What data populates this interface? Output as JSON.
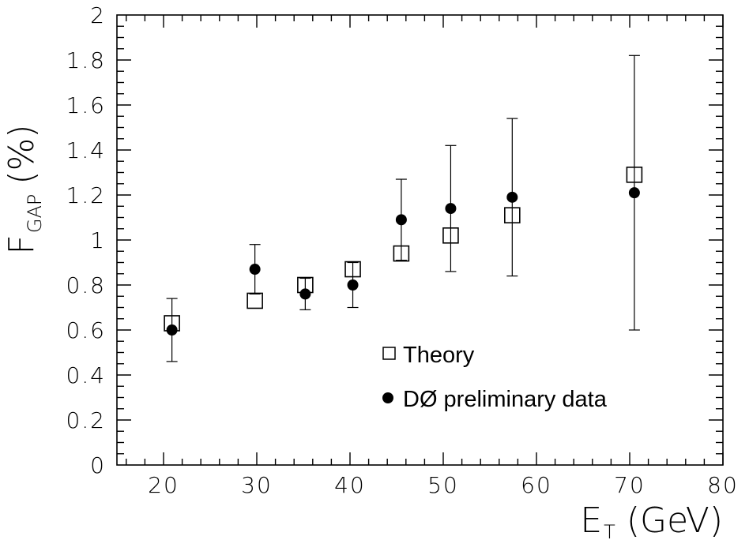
{
  "chart_data": {
    "type": "scatter",
    "xlabel": {
      "main": "E",
      "sub": "T",
      "unit": "(GeV)"
    },
    "ylabel": {
      "main": "F",
      "sub": "GAP",
      "unit": "(%)"
    },
    "xlim": [
      15,
      80
    ],
    "ylim": [
      0,
      2
    ],
    "x_ticks": [
      20,
      30,
      40,
      50,
      60,
      70,
      80
    ],
    "y_ticks": [
      0,
      0.2,
      0.4,
      0.6,
      0.8,
      1,
      1.2,
      1.4,
      1.6,
      1.8,
      2
    ],
    "y_tick_labels": [
      "0",
      "0.2",
      "0.4",
      "0.6",
      "0.8",
      "1",
      "1.2",
      "1.4",
      "1.6",
      "1.8",
      "2"
    ],
    "x_tick_labels": [
      "20",
      "30",
      "40",
      "50",
      "60",
      "70",
      "80"
    ],
    "grid": false,
    "legend_position": "center-right",
    "series": [
      {
        "name": "Theory",
        "marker": "open-square",
        "points": [
          {
            "x": 20.9,
            "y": 0.63
          },
          {
            "x": 29.8,
            "y": 0.73
          },
          {
            "x": 35.2,
            "y": 0.8
          },
          {
            "x": 40.3,
            "y": 0.87
          },
          {
            "x": 45.5,
            "y": 0.94
          },
          {
            "x": 50.8,
            "y": 1.02
          },
          {
            "x": 57.4,
            "y": 1.11
          },
          {
            "x": 70.5,
            "y": 1.29
          }
        ]
      },
      {
        "name": "DØ preliminary data",
        "marker": "filled-circle",
        "points": [
          {
            "x": 20.9,
            "y": 0.6,
            "err_low": 0.46,
            "err_high": 0.74
          },
          {
            "x": 29.8,
            "y": 0.87,
            "err_low": 0.76,
            "err_high": 0.98
          },
          {
            "x": 35.2,
            "y": 0.76,
            "err_low": 0.69,
            "err_high": 0.83
          },
          {
            "x": 40.3,
            "y": 0.8,
            "err_low": 0.7,
            "err_high": 0.9
          },
          {
            "x": 45.5,
            "y": 1.09,
            "err_low": 0.91,
            "err_high": 1.27
          },
          {
            "x": 50.8,
            "y": 1.14,
            "err_low": 0.86,
            "err_high": 1.42
          },
          {
            "x": 57.4,
            "y": 1.19,
            "err_low": 0.84,
            "err_high": 1.54
          },
          {
            "x": 70.5,
            "y": 1.21,
            "err_low": 0.6,
            "err_high": 1.82
          }
        ]
      }
    ]
  }
}
